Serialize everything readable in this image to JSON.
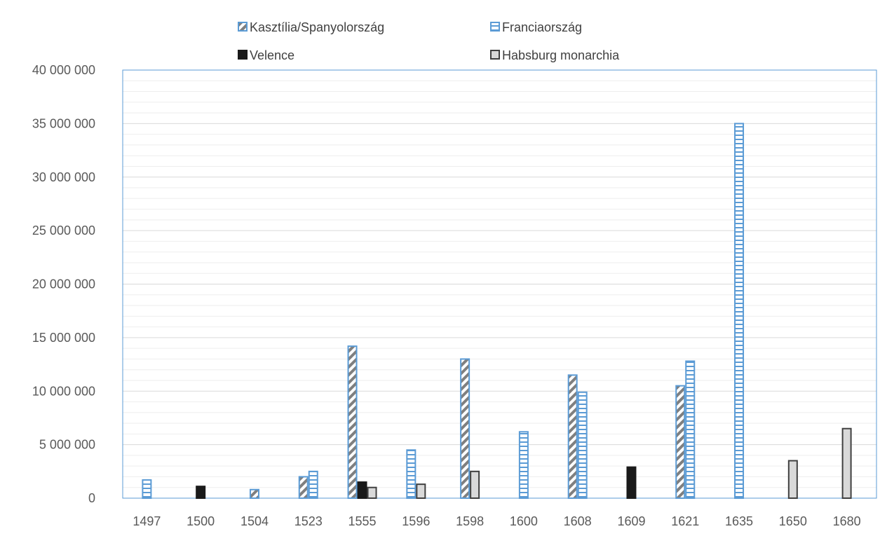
{
  "chart_data": {
    "type": "bar",
    "title": "",
    "xlabel": "",
    "ylabel": "",
    "categories": [
      "1497",
      "1500",
      "1504",
      "1523",
      "1555",
      "1596",
      "1598",
      "1600",
      "1608",
      "1609",
      "1621",
      "1635",
      "1650",
      "1680"
    ],
    "ylim": [
      0,
      40000000
    ],
    "y_ticks": [
      0,
      5000000,
      10000000,
      15000000,
      20000000,
      25000000,
      30000000,
      35000000,
      40000000
    ],
    "y_tick_labels": [
      "0",
      "5 000 000",
      "10 000 000",
      "15 000 000",
      "20 000 000",
      "25 000 000",
      "30 000 000",
      "35 000 000",
      "40 000 000"
    ],
    "grid": true,
    "legend_position": "top",
    "series": [
      {
        "name": "Kasztília/Spanyolország",
        "pattern": "diagonal-hatch",
        "color": "#5b9bd5",
        "values": [
          null,
          null,
          800000,
          2000000,
          14200000,
          null,
          13000000,
          null,
          11500000,
          null,
          10500000,
          null,
          null,
          null
        ]
      },
      {
        "name": "Franciaország",
        "pattern": "horizontal-stripes",
        "color": "#5b9bd5",
        "values": [
          1700000,
          null,
          null,
          2500000,
          null,
          4500000,
          null,
          6200000,
          9900000,
          null,
          12800000,
          35000000,
          null,
          null
        ]
      },
      {
        "name": "Velence",
        "pattern": "solid",
        "color": "#1a1a1a",
        "values": [
          null,
          1100000,
          null,
          null,
          1500000,
          null,
          null,
          null,
          null,
          2900000,
          null,
          null,
          null,
          null
        ]
      },
      {
        "name": "Habsburg monarchia",
        "pattern": "solid",
        "color": "#d9d9d9",
        "values": [
          null,
          null,
          null,
          null,
          1000000,
          1300000,
          2500000,
          null,
          null,
          null,
          null,
          null,
          3500000,
          6500000
        ]
      }
    ]
  }
}
